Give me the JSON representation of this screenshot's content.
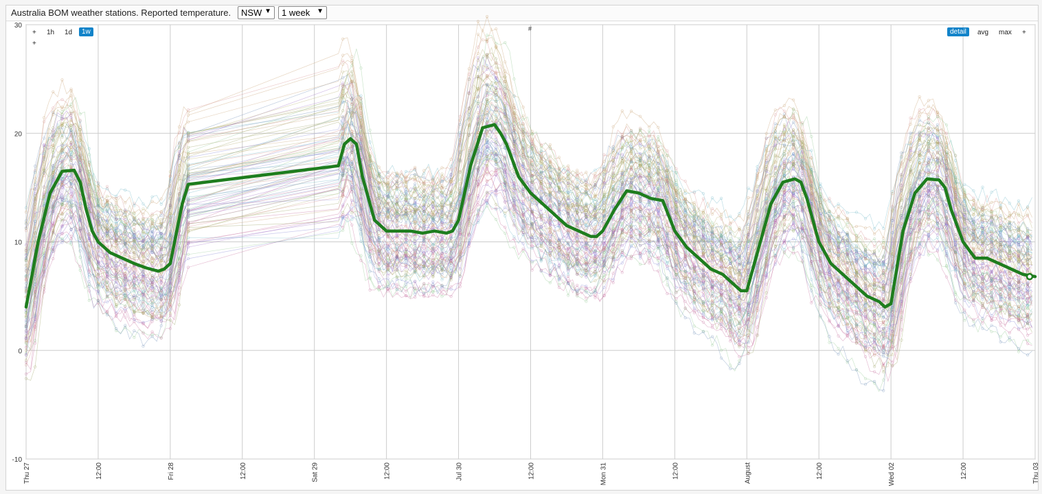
{
  "header": {
    "title": "Australia BOM weather stations. Reported temperature.",
    "region_select": "NSW",
    "period_select": "1 week"
  },
  "controls": {
    "left": [
      "+",
      "1h",
      "1d",
      "1w"
    ],
    "left_active": "1w",
    "left_extra": "+",
    "center": "#",
    "right": [
      "detail",
      "avg",
      "max",
      "+"
    ],
    "right_active": "detail"
  },
  "colors": {
    "avg_line": "#1e7d1e",
    "grid": "#cccccc",
    "active_button": "#1183c9",
    "series_palette": [
      "#8a8ad6",
      "#d69090",
      "#90c890",
      "#c8a070",
      "#a070c8",
      "#70b8c8",
      "#c870a0",
      "#9aa060",
      "#6f8fb8",
      "#b8b070"
    ]
  },
  "chart_data": {
    "type": "line",
    "title": "Australia BOM weather stations. Reported temperature.",
    "xlabel": "",
    "ylabel": "",
    "x_unit": "hours since Thu 27 00:00",
    "xlim": [
      0,
      168
    ],
    "ylim": [
      -10,
      30
    ],
    "y_ticks": [
      -10,
      0,
      10,
      20,
      30
    ],
    "x_ticks": [
      {
        "x": 0,
        "label": "Thu 27"
      },
      {
        "x": 12,
        "label": "12:00"
      },
      {
        "x": 24,
        "label": "Fri 28"
      },
      {
        "x": 36,
        "label": "12:00"
      },
      {
        "x": 48,
        "label": "Sat 29"
      },
      {
        "x": 60,
        "label": "12:00"
      },
      {
        "x": 72,
        "label": "Jul 30"
      },
      {
        "x": 84,
        "label": "12:00"
      },
      {
        "x": 96,
        "label": "Mon 31"
      },
      {
        "x": 108,
        "label": "12:00"
      },
      {
        "x": 120,
        "label": "August"
      },
      {
        "x": 132,
        "label": "12:00"
      },
      {
        "x": 144,
        "label": "Wed 02"
      },
      {
        "x": 156,
        "label": "12:00"
      },
      {
        "x": 168,
        "label": "Thu 03"
      }
    ],
    "grid": true,
    "station_count": 90,
    "average_series": {
      "name": "avg",
      "x": [
        0,
        2,
        4,
        6,
        8,
        9,
        10,
        11,
        12,
        14,
        16,
        18,
        20,
        22,
        23,
        24,
        26,
        27,
        52,
        53,
        54,
        55,
        56,
        58,
        60,
        62,
        64,
        66,
        68,
        70,
        71,
        72,
        74,
        76,
        78,
        79,
        80,
        82,
        84,
        86,
        88,
        90,
        92,
        94,
        95,
        96,
        98,
        100,
        102,
        104,
        106,
        108,
        110,
        112,
        114,
        116,
        118,
        119,
        120,
        122,
        124,
        126,
        128,
        129,
        130,
        132,
        134,
        136,
        138,
        140,
        142,
        143,
        144,
        146,
        148,
        150,
        152,
        153,
        154,
        156,
        158,
        160,
        162,
        164,
        166,
        168
      ],
      "y": [
        4,
        10,
        14.5,
        16.5,
        16.6,
        15.5,
        13,
        11,
        10,
        9,
        8.5,
        8,
        7.6,
        7.3,
        7.5,
        8,
        13.5,
        15.3,
        17,
        19,
        19.5,
        19,
        16,
        12,
        11,
        11,
        11,
        10.8,
        11,
        10.8,
        11,
        12,
        17,
        20.5,
        20.8,
        20,
        19,
        16,
        14.5,
        13.5,
        12.5,
        11.5,
        11,
        10.5,
        10.5,
        11,
        13,
        14.7,
        14.5,
        14,
        13.8,
        11,
        9.5,
        8.5,
        7.5,
        7,
        6,
        5.5,
        5.5,
        9.5,
        13.5,
        15.5,
        15.8,
        15.5,
        14,
        10,
        8,
        7,
        6,
        5,
        4.5,
        4,
        4.3,
        11,
        14.5,
        15.8,
        15.7,
        15,
        13,
        10,
        8.5,
        8.5,
        8,
        7.5,
        7,
        6.8
      ]
    }
  }
}
